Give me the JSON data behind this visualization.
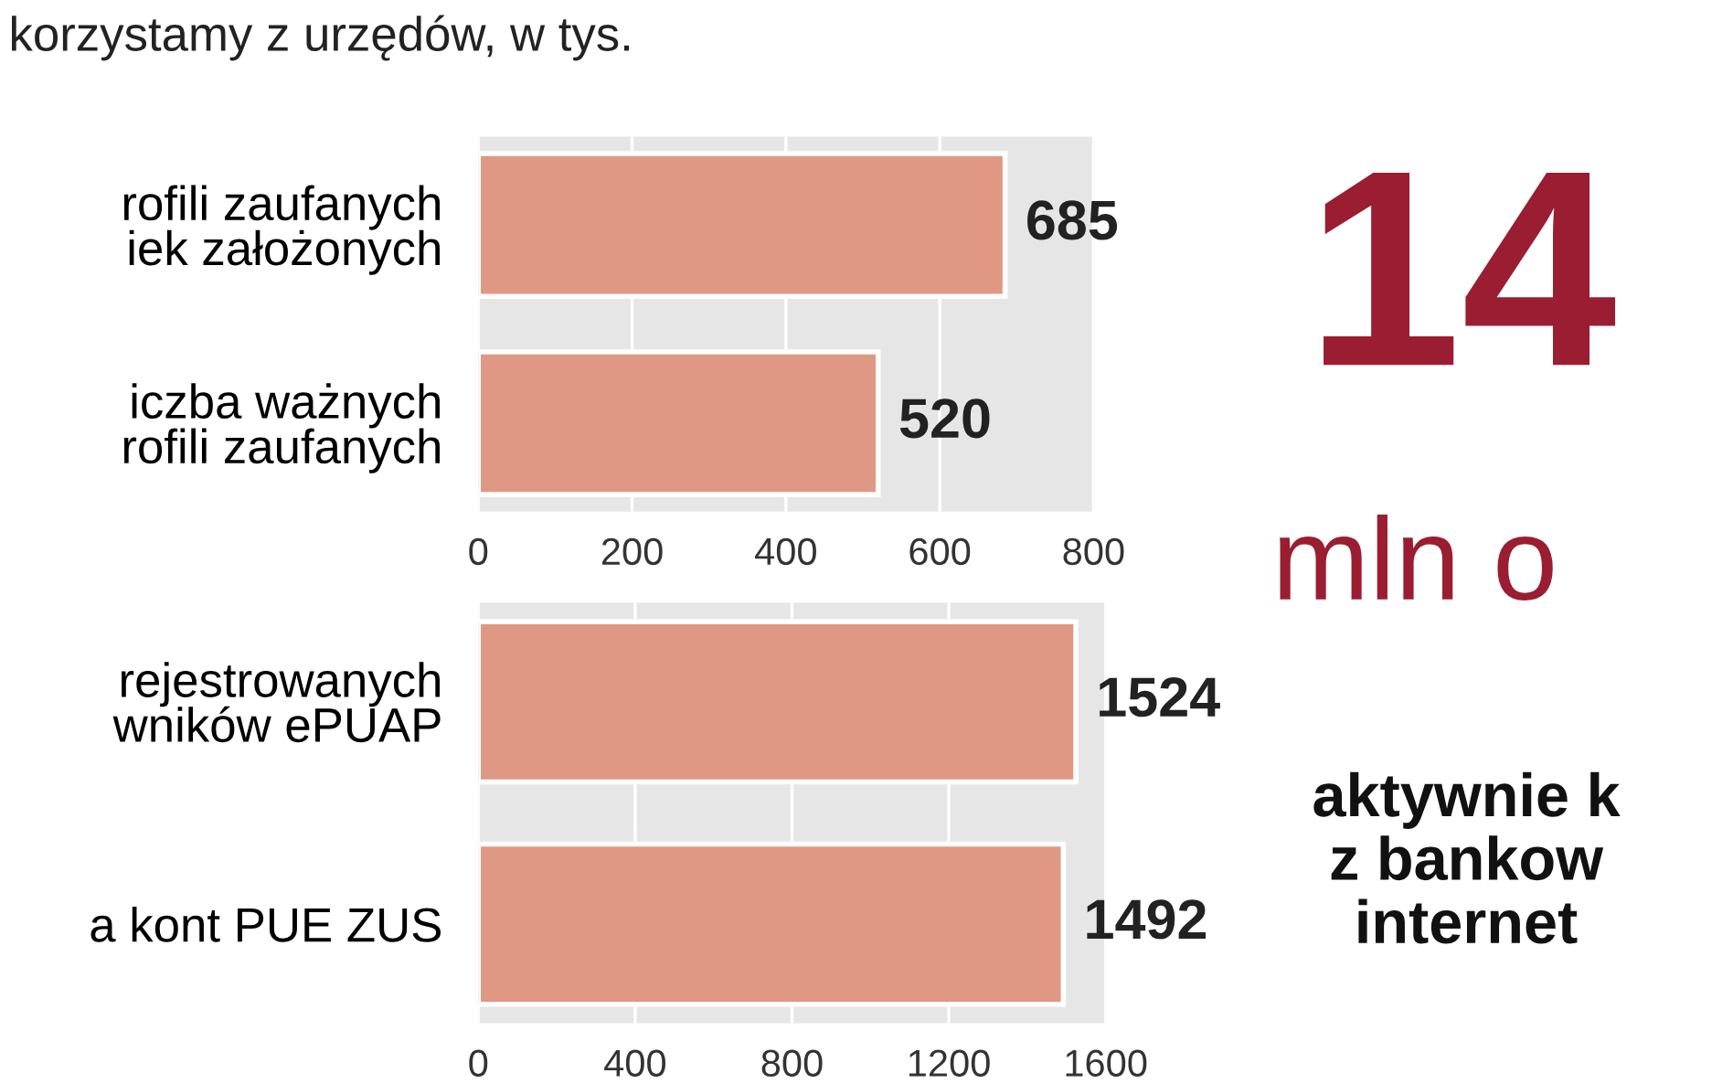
{
  "chart_data": [
    {
      "type": "bar",
      "orientation": "horizontal",
      "title": "korzystamy z urzędów, w tys.",
      "categories": [
        "rofili zaufanych\niek założonych",
        "iczba ważnych\nrofili zaufanych"
      ],
      "values": [
        685,
        520
      ],
      "color": "#df9883",
      "xlim": [
        0,
        800
      ],
      "xticks": [
        0,
        200,
        400,
        600,
        800
      ],
      "grid": "x",
      "data_labels": true
    },
    {
      "type": "bar",
      "orientation": "horizontal",
      "categories": [
        "rejestrowanych\nwników ePUAP",
        "a kont PUE ZUS"
      ],
      "values": [
        1524,
        1492
      ],
      "color": "#df9883",
      "xlim": [
        0,
        1600
      ],
      "xticks": [
        0,
        400,
        800,
        1200,
        1600
      ],
      "grid": "x",
      "data_labels": true
    },
    {
      "type": "other",
      "annotations": [
        "14",
        "mln o",
        "aktywnie k\nz bankow\ninternet"
      ]
    }
  ]
}
